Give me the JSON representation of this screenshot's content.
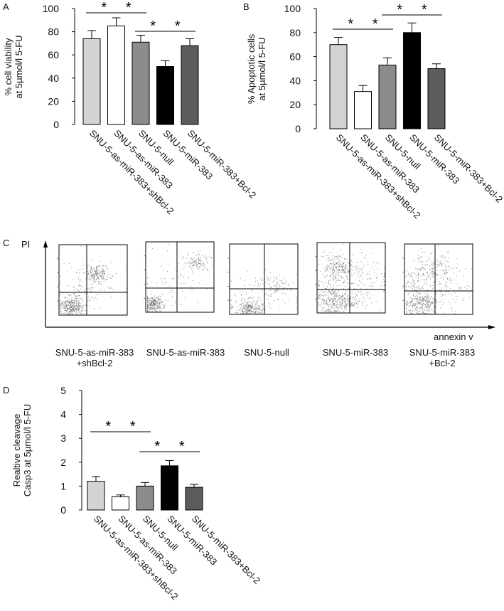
{
  "chart_data": [
    {
      "panel": "A",
      "type": "bar",
      "ylabel_line1": "% cell viability",
      "ylabel_line2": "at 5µmol/l 5-FU",
      "ylim": [
        0,
        100
      ],
      "yticks": [
        "0",
        "20",
        "40",
        "60",
        "80",
        "100"
      ],
      "categories": [
        "SNU-5-as-miR-383+shBcl-2",
        "SNU-5-as-miR-383",
        "SNU-5-null",
        "SNU-5-miR-383",
        "SNU-5-miR-383+Bcl-2"
      ],
      "values": [
        74,
        85,
        71,
        50,
        68
      ],
      "errors": [
        7,
        7,
        6,
        5,
        6
      ],
      "colors": [
        "#d3d3d3",
        "#ffffff",
        "#8c8c8c",
        "#000000",
        "#5c5c5c"
      ],
      "significance": [
        {
          "between": [
            0,
            1
          ],
          "label": "*"
        },
        {
          "between": [
            1,
            2
          ],
          "label": "*"
        },
        {
          "between": [
            2,
            3
          ],
          "label": "*"
        },
        {
          "between": [
            3,
            4
          ],
          "label": "*"
        }
      ]
    },
    {
      "panel": "B",
      "type": "bar",
      "ylabel_line1": "% Apoptotic cells",
      "ylabel_line2": "at 5µmol/l 5-FU",
      "ylim": [
        0,
        100
      ],
      "yticks": [
        "0",
        "20",
        "40",
        "60",
        "80",
        "100"
      ],
      "categories": [
        "SNU-5-as-miR-383+shBcl-2",
        "SNU-5-as-miR-383",
        "SNU-5-null",
        "SNU-5-miR-383",
        "SNU-5-miR-383+Bcl-2"
      ],
      "values": [
        70,
        31,
        53,
        80,
        50
      ],
      "errors": [
        6,
        5,
        6,
        8,
        4
      ],
      "colors": [
        "#d3d3d3",
        "#ffffff",
        "#8c8c8c",
        "#000000",
        "#5c5c5c"
      ],
      "significance": [
        {
          "between": [
            0,
            1
          ],
          "label": "*"
        },
        {
          "between": [
            1,
            2
          ],
          "label": "*"
        },
        {
          "between": [
            2,
            3
          ],
          "label": "*"
        },
        {
          "between": [
            3,
            4
          ],
          "label": "*"
        }
      ]
    },
    {
      "panel": "D",
      "type": "bar",
      "ylabel_line1": "Realtive cleavage",
      "ylabel_line2": "Casp3 at 5µmol/l 5-FU",
      "ylim": [
        0,
        5
      ],
      "yticks": [
        "0",
        "1",
        "2",
        "3",
        "4",
        "5"
      ],
      "categories": [
        "SNU-5-as-miR-383+shBcl-2",
        "SNU-5-as-miR-383",
        "SNU-5-null",
        "SNU-5-miR-383",
        "SNU-5-miR-383+Bcl-2"
      ],
      "values": [
        1.2,
        0.55,
        1.0,
        1.85,
        0.95
      ],
      "errors": [
        0.2,
        0.08,
        0.15,
        0.22,
        0.12
      ],
      "colors": [
        "#d3d3d3",
        "#ffffff",
        "#8c8c8c",
        "#000000",
        "#5c5c5c"
      ],
      "significance": [
        {
          "between": [
            0,
            1
          ],
          "label": "*"
        },
        {
          "between": [
            1,
            2
          ],
          "label": "*"
        },
        {
          "between": [
            2,
            3
          ],
          "label": "*"
        },
        {
          "between": [
            3,
            4
          ],
          "label": "*"
        }
      ]
    }
  ],
  "flow": {
    "panel": "C",
    "type": "scatter",
    "y_axis_label": "PI",
    "x_axis_label": "annexin v",
    "samples": [
      {
        "name_line1": "SNU-5-as-miR-383",
        "name_line2": "+shBcl-2"
      },
      {
        "name_line1": "SNU-5-as-miR-383",
        "name_line2": ""
      },
      {
        "name_line1": "SNU-5-null",
        "name_line2": ""
      },
      {
        "name_line1": "SNU-5-miR-383",
        "name_line2": ""
      },
      {
        "name_line1": "SNU-5-miR-383",
        "name_line2": "+Bcl-2"
      }
    ]
  },
  "panel_letters": {
    "a": "A",
    "b": "B",
    "c": "C",
    "d": "D"
  }
}
